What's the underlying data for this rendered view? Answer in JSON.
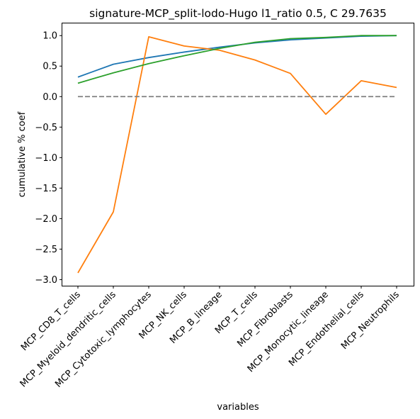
{
  "chart_data": {
    "type": "line",
    "title": "signature-MCP_split-lodo-Hugo l1_ratio 0.5, C 29.7635",
    "xlabel": "variables",
    "ylabel": "cumulative % coef",
    "categories": [
      "MCP_CD8_T_cells",
      "MCP_Myeloid_dendritic_cells",
      "MCP_Cytotoxic_lymphocytes",
      "MCP_NK_cells",
      "MCP_B_lineage",
      "MCP_T_cells",
      "MCP_Fibroblasts",
      "MCP_Monocytic_lineage",
      "MCP_Endothelial_cells",
      "MCP_Neutrophils"
    ],
    "ylim": [
      -3.1,
      1.2
    ],
    "yticks": [
      1.0,
      0.5,
      0.0,
      -0.5,
      -1.0,
      -1.5,
      -2.0,
      -2.5,
      -3.0
    ],
    "ytick_labels": [
      "1.0",
      "0.5",
      "0.0",
      "−0.5",
      "−1.0",
      "−1.5",
      "−2.0",
      "−2.5",
      "−3.0"
    ],
    "grid": false,
    "series": [
      {
        "color": "#1f77b4",
        "values": [
          0.32,
          0.53,
          0.64,
          0.73,
          0.81,
          0.88,
          0.93,
          0.96,
          0.99,
          1.0
        ]
      },
      {
        "color": "#ff7f0e",
        "values": [
          -2.89,
          -1.89,
          0.98,
          0.83,
          0.76,
          0.6,
          0.38,
          -0.29,
          0.26,
          0.15
        ]
      },
      {
        "color": "#2ca02c",
        "values": [
          0.22,
          0.39,
          0.54,
          0.67,
          0.79,
          0.89,
          0.95,
          0.97,
          1.0,
          1.0
        ]
      },
      {
        "color": "#808080",
        "dashed": true,
        "values": [
          0,
          0,
          0,
          0,
          0,
          0,
          0,
          0,
          0,
          0
        ]
      }
    ]
  }
}
